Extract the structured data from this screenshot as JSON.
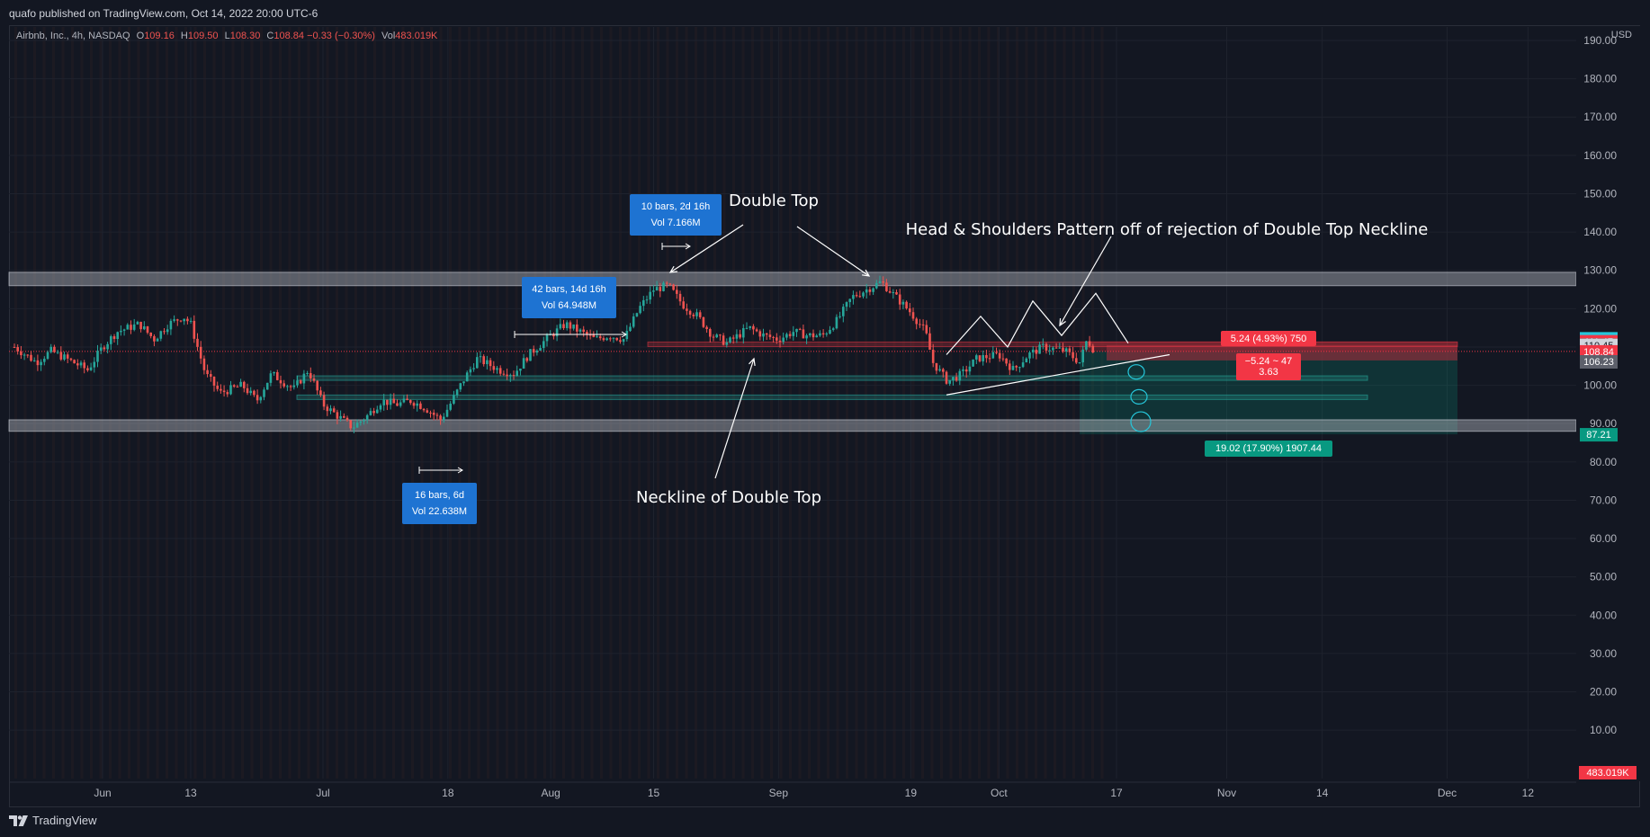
{
  "header": {
    "published": "quafo published on TradingView.com, Oct 14, 2022 20:00 UTC-6"
  },
  "legend": {
    "symbol": "Airbnb, Inc., 4h, NASDAQ",
    "open_label": "O",
    "open": "109.16",
    "high_label": "H",
    "high": "109.50",
    "low_label": "L",
    "low": "108.30",
    "close_label": "C",
    "close": "108.84",
    "change": "−0.33 (−0.30%)",
    "vol_label": "Vol",
    "vol": "483.019K"
  },
  "currency": "USD",
  "footer": {
    "brand": "TradingView"
  },
  "colors": {
    "background": "#131722",
    "up": "#26a69a",
    "down": "#ef5350",
    "zone": "#b2b5be",
    "teal_zone": "#0d3b3f",
    "red_zone": "#5c1f2a",
    "measure_box": "#1e73d2"
  },
  "chart_data": {
    "type": "candlestick",
    "symbol": "ABNB",
    "interval": "4h",
    "x_tick_labels": [
      "Jun",
      "13",
      "Jul",
      "18",
      "Aug",
      "15",
      "Sep",
      "19",
      "Oct",
      "17",
      "Nov",
      "14",
      "Dec",
      "12"
    ],
    "x_tick_dates": [
      "2022-06-01",
      "2022-06-13",
      "2022-07-01",
      "2022-07-18",
      "2022-08-01",
      "2022-08-15",
      "2022-09-01",
      "2022-09-19",
      "2022-10-01",
      "2022-10-17",
      "2022-11-01",
      "2022-11-14",
      "2022-12-01",
      "2022-12-12"
    ],
    "y_ticks": [
      10,
      20,
      30,
      40,
      50,
      60,
      70,
      80,
      90,
      100,
      110,
      120,
      130,
      140,
      150,
      160,
      170,
      180,
      190
    ],
    "ylim": [
      0,
      192
    ],
    "close_path": [
      [
        "2022-05-20",
        110
      ],
      [
        "2022-05-23",
        106
      ],
      [
        "2022-05-25",
        109
      ],
      [
        "2022-05-27",
        107
      ],
      [
        "2022-05-30",
        104
      ],
      [
        "2022-06-01",
        110
      ],
      [
        "2022-06-03",
        114
      ],
      [
        "2022-06-06",
        116
      ],
      [
        "2022-06-08",
        112
      ],
      [
        "2022-06-10",
        116
      ],
      [
        "2022-06-12",
        118
      ],
      [
        "2022-06-13",
        116
      ],
      [
        "2022-06-15",
        103
      ],
      [
        "2022-06-17",
        98
      ],
      [
        "2022-06-20",
        100
      ],
      [
        "2022-06-22",
        96
      ],
      [
        "2022-06-24",
        103
      ],
      [
        "2022-06-27",
        99
      ],
      [
        "2022-06-29",
        104
      ],
      [
        "2022-07-01",
        95
      ],
      [
        "2022-07-03",
        92
      ],
      [
        "2022-07-05",
        89
      ],
      [
        "2022-07-07",
        92
      ],
      [
        "2022-07-09",
        96
      ],
      [
        "2022-07-11",
        95
      ],
      [
        "2022-07-13",
        96
      ],
      [
        "2022-07-15",
        94
      ],
      [
        "2022-07-17",
        91
      ],
      [
        "2022-07-18",
        94
      ],
      [
        "2022-07-20",
        101
      ],
      [
        "2022-07-22",
        107
      ],
      [
        "2022-07-25",
        104
      ],
      [
        "2022-07-27",
        103
      ],
      [
        "2022-07-29",
        108
      ],
      [
        "2022-08-01",
        113
      ],
      [
        "2022-08-03",
        116
      ],
      [
        "2022-08-05",
        114
      ],
      [
        "2022-08-07",
        112
      ],
      [
        "2022-08-09",
        113
      ],
      [
        "2022-08-11",
        112
      ],
      [
        "2022-08-13",
        120
      ],
      [
        "2022-08-15",
        125
      ],
      [
        "2022-08-17",
        126
      ],
      [
        "2022-08-19",
        121
      ],
      [
        "2022-08-21",
        118
      ],
      [
        "2022-08-23",
        113
      ],
      [
        "2022-08-25",
        111
      ],
      [
        "2022-08-28",
        115
      ],
      [
        "2022-08-30",
        113
      ],
      [
        "2022-09-01",
        112
      ],
      [
        "2022-09-03",
        114
      ],
      [
        "2022-09-05",
        113
      ],
      [
        "2022-09-07",
        113
      ],
      [
        "2022-09-09",
        117
      ],
      [
        "2022-09-11",
        123
      ],
      [
        "2022-09-13",
        125
      ],
      [
        "2022-09-15",
        127
      ],
      [
        "2022-09-17",
        123
      ],
      [
        "2022-09-19",
        119
      ],
      [
        "2022-09-21",
        114
      ],
      [
        "2022-09-22",
        106
      ],
      [
        "2022-09-24",
        101
      ],
      [
        "2022-09-26",
        103
      ],
      [
        "2022-09-28",
        107
      ],
      [
        "2022-10-01",
        108
      ],
      [
        "2022-10-03",
        104
      ],
      [
        "2022-10-05",
        108
      ],
      [
        "2022-10-07",
        110
      ],
      [
        "2022-10-10",
        109
      ],
      [
        "2022-10-12",
        106
      ],
      [
        "2022-10-13",
        112
      ],
      [
        "2022-10-14",
        109
      ]
    ],
    "last": {
      "open": 109.16,
      "high": 109.5,
      "low": 108.3,
      "close": 108.84,
      "change": -0.33,
      "change_pct": -0.3,
      "volume": "483.019K"
    },
    "zones": [
      {
        "label": "resistance",
        "from": 126,
        "to": 129.5
      },
      {
        "label": "support",
        "from": 88,
        "to": 91
      }
    ],
    "horizontal_rays": [
      102,
      97
    ],
    "price_labels": [
      {
        "text": "112.25",
        "value": 112.25,
        "color": "#26c6da"
      },
      {
        "text": "111.47",
        "value": 111.47,
        "color": "#f23645"
      },
      {
        "text": "110.60",
        "value": 110.6,
        "color": "#9598a1"
      },
      {
        "text": "110.45",
        "value": 110.45,
        "color": "#d1d4dc"
      },
      {
        "text": "108.84",
        "value": 108.84,
        "color": "#f23645"
      },
      {
        "text": "106.23",
        "value": 106.23,
        "color": "#5d606b"
      },
      {
        "text": "87.21",
        "value": 87.21,
        "color": "#089981"
      }
    ],
    "volume_label": {
      "text": "483.019K",
      "color": "#f23645"
    },
    "position": {
      "entry": 108.84,
      "stop": 111.47,
      "target": 87.21,
      "stop_label": "5.24 (4.93%) 750",
      "open_pl_line1": "−5.24 ~ 47",
      "open_pl_line2": "3.63",
      "target_label": "19.02 (17.90%) 1907.44"
    },
    "measures": [
      {
        "line1": "10 bars, 2d 16h",
        "line2": "Vol 7.166M"
      },
      {
        "line1": "42 bars, 14d 16h",
        "line2": "Vol 64.948M"
      },
      {
        "line1": "16 bars, 6d",
        "line2": "Vol 22.638M"
      }
    ],
    "annotations": [
      "Double Top",
      "Head & Shoulders Pattern off of rejection of Double Top Neckline",
      "Neckline of Double Top"
    ]
  }
}
